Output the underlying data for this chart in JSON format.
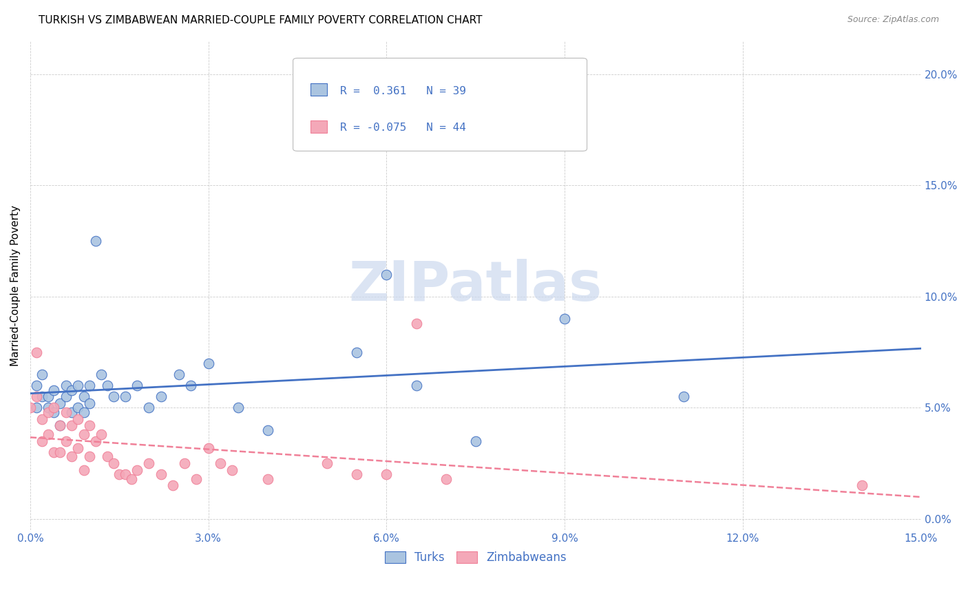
{
  "title": "TURKISH VS ZIMBABWEAN MARRIED-COUPLE FAMILY POVERTY CORRELATION CHART",
  "source": "Source: ZipAtlas.com",
  "ylabel": "Married-Couple Family Poverty",
  "xlim": [
    0.0,
    0.15
  ],
  "ylim": [
    -0.005,
    0.215
  ],
  "xticks": [
    0.0,
    0.03,
    0.06,
    0.09,
    0.12,
    0.15
  ],
  "yticks": [
    0.0,
    0.05,
    0.1,
    0.15,
    0.2
  ],
  "turks_R": 0.361,
  "turks_N": 39,
  "zimbabweans_R": -0.075,
  "zimbabweans_N": 44,
  "turks_color": "#aac4e0",
  "zimbabweans_color": "#f4a8b8",
  "turks_line_color": "#4472c4",
  "zimbabweans_line_color": "#f08098",
  "tick_color": "#4472c4",
  "watermark_color": "#ccd9ee",
  "turks_x": [
    0.001,
    0.001,
    0.002,
    0.002,
    0.003,
    0.003,
    0.004,
    0.004,
    0.005,
    0.005,
    0.006,
    0.006,
    0.007,
    0.007,
    0.008,
    0.008,
    0.009,
    0.009,
    0.01,
    0.01,
    0.011,
    0.012,
    0.013,
    0.014,
    0.016,
    0.018,
    0.02,
    0.022,
    0.025,
    0.027,
    0.03,
    0.035,
    0.04,
    0.055,
    0.06,
    0.065,
    0.075,
    0.09,
    0.11
  ],
  "turks_y": [
    0.05,
    0.06,
    0.055,
    0.065,
    0.05,
    0.055,
    0.048,
    0.058,
    0.042,
    0.052,
    0.06,
    0.055,
    0.048,
    0.058,
    0.05,
    0.06,
    0.055,
    0.048,
    0.052,
    0.06,
    0.125,
    0.065,
    0.06,
    0.055,
    0.055,
    0.06,
    0.05,
    0.055,
    0.065,
    0.06,
    0.07,
    0.05,
    0.04,
    0.075,
    0.11,
    0.06,
    0.035,
    0.09,
    0.055
  ],
  "zimbabweans_x": [
    0.0,
    0.001,
    0.001,
    0.002,
    0.002,
    0.003,
    0.003,
    0.004,
    0.004,
    0.005,
    0.005,
    0.006,
    0.006,
    0.007,
    0.007,
    0.008,
    0.008,
    0.009,
    0.009,
    0.01,
    0.01,
    0.011,
    0.012,
    0.013,
    0.014,
    0.015,
    0.016,
    0.017,
    0.018,
    0.02,
    0.022,
    0.024,
    0.026,
    0.028,
    0.03,
    0.032,
    0.034,
    0.04,
    0.05,
    0.055,
    0.06,
    0.065,
    0.07,
    0.14
  ],
  "zimbabweans_y": [
    0.05,
    0.075,
    0.055,
    0.045,
    0.035,
    0.048,
    0.038,
    0.05,
    0.03,
    0.042,
    0.03,
    0.048,
    0.035,
    0.042,
    0.028,
    0.045,
    0.032,
    0.038,
    0.022,
    0.042,
    0.028,
    0.035,
    0.038,
    0.028,
    0.025,
    0.02,
    0.02,
    0.018,
    0.022,
    0.025,
    0.02,
    0.015,
    0.025,
    0.018,
    0.032,
    0.025,
    0.022,
    0.018,
    0.025,
    0.02,
    0.02,
    0.088,
    0.018,
    0.015
  ]
}
